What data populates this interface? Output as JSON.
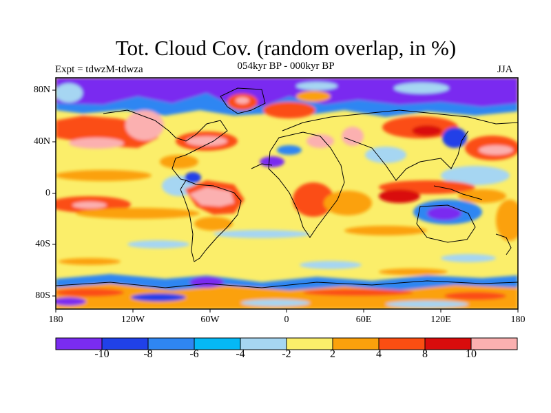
{
  "header": {
    "title": "Tot. Cloud Cov. (random overlap, in %)",
    "subtitle": "054kyr BP - 000kyr BP",
    "left_label": "Expt = tdwzM-tdwza",
    "season": "JJA"
  },
  "axes": {
    "lat_ticks": [
      "80N",
      "40N",
      "0",
      "40S",
      "80S"
    ],
    "lon_ticks": [
      "180",
      "120W",
      "60W",
      "0",
      "60E",
      "120E",
      "180"
    ]
  },
  "colorbar": {
    "labels": [
      "-10",
      "-8",
      "-6",
      "-4",
      "-2",
      "2",
      "4",
      "8",
      "10"
    ],
    "colors": [
      "#7a2cf0",
      "#2041e8",
      "#2f86f2",
      "#05b8f5",
      "#a6d6f2",
      "#fbee6a",
      "#fba10c",
      "#fb4e12",
      "#d90c0c",
      "#fbb0b0"
    ]
  },
  "map": {
    "background": "#fbee6a",
    "fill_layer": "cloud-cover-difference"
  }
}
